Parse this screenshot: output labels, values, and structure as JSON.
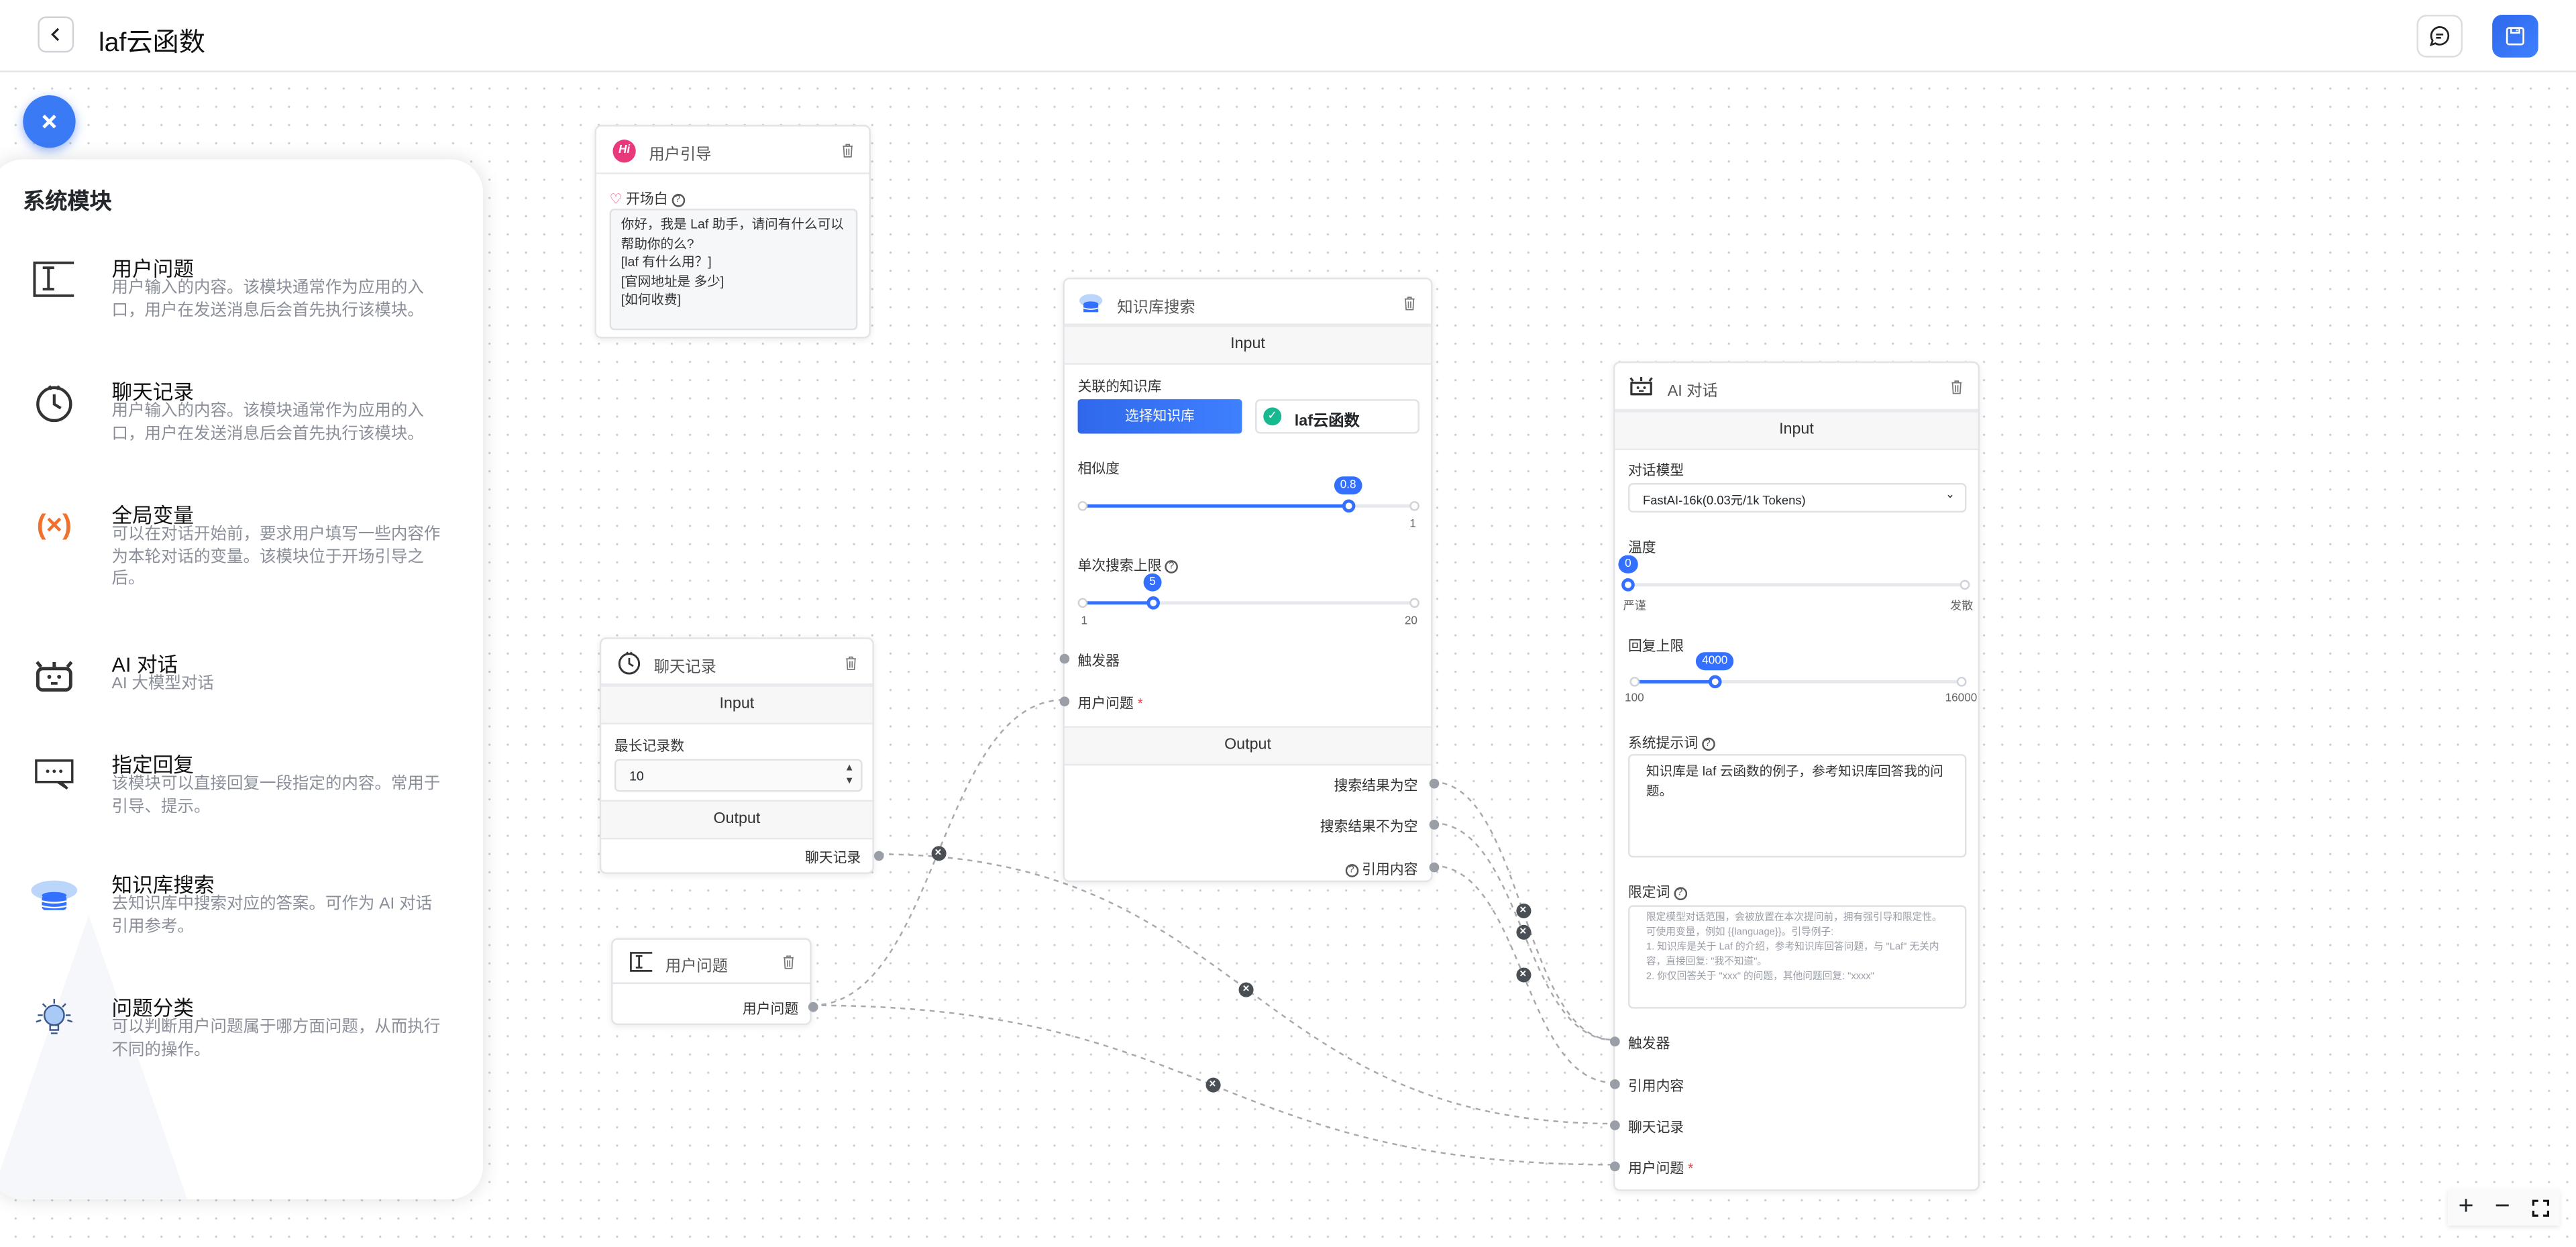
{
  "header": {
    "title": "laf云函数",
    "back_icon": "chevron-left-icon",
    "chat_icon": "chat-bubble-icon",
    "save_icon": "floppy-disk-icon",
    "accent": "#3370ff"
  },
  "panel": {
    "title": "系统模块",
    "modules": [
      {
        "icon": "text-cursor-icon",
        "title": "用户问题",
        "desc": "用户输入的内容。该模块通常作为应用的入口，用户在发送消息后会首先执行该模块。"
      },
      {
        "icon": "clock-icon",
        "title": "聊天记录",
        "desc": "用户输入的内容。该模块通常作为应用的入口，用户在发送消息后会首先执行该模块。"
      },
      {
        "icon": "variable-icon",
        "title": "全局变量",
        "desc": "可以在对话开始前，要求用户填写一些内容作为本轮对话的变量。该模块位于开场引导之后。"
      },
      {
        "icon": "robot-icon",
        "title": "AI 对话",
        "desc": "AI 大模型对话"
      },
      {
        "icon": "message-dots-icon",
        "title": "指定回复",
        "desc": "该模块可以直接回复一段指定的内容。常用于引导、提示。"
      },
      {
        "icon": "database-cloud-icon",
        "title": "知识库搜索",
        "desc": "去知识库中搜索对应的答案。可作为 AI 对话引用参考。"
      },
      {
        "icon": "lightbulb-icon",
        "title": "问题分类",
        "desc": "可以判断用户问题属于哪方面问题，从而执行不同的操作。"
      }
    ]
  },
  "nodes": {
    "guide": {
      "title": "用户引导",
      "icon_text": "Hi",
      "opening_label": "开场白",
      "opening_text": "你好，我是 Laf 助手，请问有什么可以帮助你的么?\n[laf 有什么用？]\n[官网地址是 多少]\n[如何收费]"
    },
    "history": {
      "title": "聊天记录",
      "input": "Input",
      "max_label": "最长记录数",
      "max_value": "10",
      "output": "Output",
      "out_label": "聊天记录"
    },
    "question": {
      "title": "用户问题",
      "out_label": "用户问题"
    },
    "kb": {
      "title": "知识库搜索",
      "input": "Input",
      "kb_label": "关联的知识库",
      "select_btn": "选择知识库",
      "selected_kb": "laf云函数",
      "similarity": {
        "label": "相似度",
        "value": 0.8,
        "value_text": "0.8",
        "min": 0,
        "max": 1,
        "max_text": "1"
      },
      "limit": {
        "label": "单次搜索上限",
        "value": 5,
        "value_text": "5",
        "min": 1,
        "max": 20,
        "min_text": "1",
        "max_text": "20"
      },
      "in_trigger": "触发器",
      "in_question": "用户问题",
      "output": "Output",
      "outputs": [
        "搜索结果为空",
        "搜索结果不为空",
        "引用内容"
      ]
    },
    "ai": {
      "title": "AI 对话",
      "input": "Input",
      "model_label": "对话模型",
      "model_value": "FastAI-16k(0.03元/1k Tokens)",
      "temp": {
        "label": "温度",
        "value": 0,
        "value_text": "0",
        "min": 0,
        "max": 10,
        "min_text": "严谨",
        "max_text": "发散"
      },
      "maxtok": {
        "label": "回复上限",
        "value": 4000,
        "value_text": "4000",
        "min": 100,
        "max": 16000,
        "min_text": "100",
        "max_text": "16000"
      },
      "sys_label": "系统提示词",
      "sys_text": "知识库是 laf 云函数的例子，参考知识库回答我的问题。",
      "limit_label": "限定词",
      "limit_placeholder": "限定模型对话范围，会被放置在本次提问前，拥有强引导和限定性。可使用变量，例如 {{language}}。引导例子:\n1. 知识库是关于 Laf 的介绍，参考知识库回答问题，与 \"Laf\" 无关内容，直接回复: \"我不知道\"。\n2. 你仅回答关于 \"xxx\" 的问题，其他问题回复: \"xxxx\"",
      "inputs": [
        "触发器",
        "引用内容",
        "聊天记录",
        "用户问题"
      ]
    }
  },
  "zoom_controls": {
    "zoom_in": "+",
    "zoom_out": "−"
  }
}
